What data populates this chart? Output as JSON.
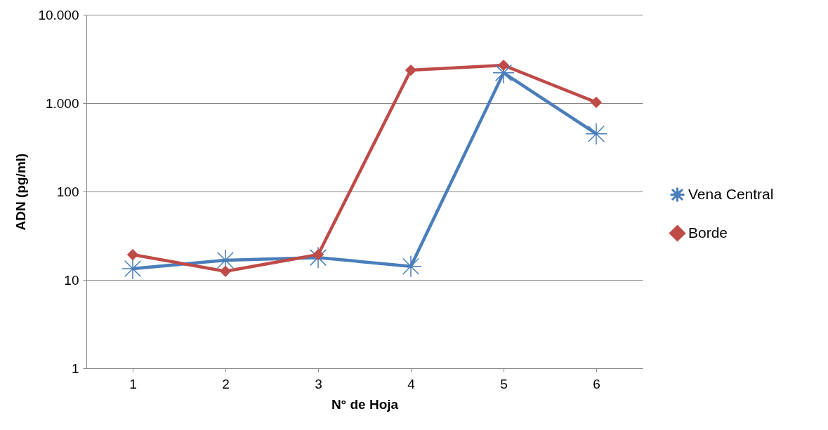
{
  "chart_data": {
    "type": "line",
    "xlabel": "N° de Hoja",
    "ylabel": "ADN (pg/ml)",
    "categories": [
      "1",
      "2",
      "3",
      "4",
      "5",
      "6"
    ],
    "series": [
      {
        "name": "Vena Central",
        "color": "#4a7ebb",
        "marker": "cross",
        "values": [
          13.4,
          16.7,
          17.9,
          14.2,
          2200,
          450
        ]
      },
      {
        "name": "Borde",
        "color": "#be4b48",
        "marker": "diamond",
        "values": [
          19.3,
          12.5,
          19.3,
          2360,
          2680,
          1020
        ]
      }
    ],
    "log": "y",
    "ylim": [
      1,
      10000
    ],
    "yticks": [
      1,
      10,
      100,
      {
        "value": 1000,
        "label": "1.000"
      },
      {
        "value": 10000,
        "label": "10.000"
      }
    ],
    "grid": "y",
    "legend": "right",
    "line_style": "solid"
  }
}
